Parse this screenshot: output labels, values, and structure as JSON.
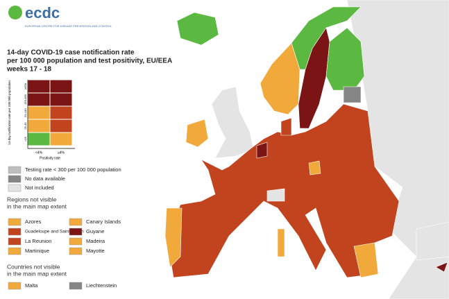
{
  "header": {
    "logo": "ecdc",
    "logo_subtitle": "EUROPEAN CENTRE FOR DISEASE PREVENTION AND CONTROL",
    "title": [
      "14-day COVID-19 case notification rate",
      "per 100 000 population and test positivity, EU/EEA",
      "weeks 17 - 18"
    ]
  },
  "matrix": {
    "y_label": "14-day notification rate per 100 000 population",
    "x_label": "Positivity rate",
    "columns": [
      "<4%",
      "≥4%"
    ],
    "rows": [
      {
        "label": "≥500",
        "colors": [
          "#7b1414",
          "#7b1414"
        ]
      },
      {
        "label": "150-499",
        "colors": [
          "#7b1414",
          "#7b1414"
        ]
      },
      {
        "label": "50-149",
        "colors": [
          "#f2a93b",
          "#c1441e"
        ]
      },
      {
        "label": "25-49",
        "colors": [
          "#f2a93b",
          "#c1441e"
        ]
      },
      {
        "label": "<25",
        "colors": [
          "#5bb942",
          "#f2a93b"
        ]
      }
    ]
  },
  "legend": {
    "items": [
      {
        "label": "Testing rate < 300 per 100 000 population",
        "color": "#bdbdbd"
      },
      {
        "label": "No data available",
        "color": "#858585"
      },
      {
        "label": "Not included",
        "color": "#e4e4e4"
      }
    ],
    "regions": {
      "title": [
        "Regions not visible",
        "in the main map extent"
      ],
      "items": [
        {
          "label": "Azores",
          "color": "#f2a93b"
        },
        {
          "label": "Canary Islands",
          "color": "#f2a93b"
        },
        {
          "label": "Guadeloupe and Saint Martin",
          "color": "#c1441e"
        },
        {
          "label": "Guyane",
          "color": "#7b1414"
        },
        {
          "label": "La Reunion",
          "color": "#c1441e"
        },
        {
          "label": "Madeira",
          "color": "#f2a93b"
        },
        {
          "label": "Martinique",
          "color": "#f2a93b"
        },
        {
          "label": "Mayotte",
          "color": "#f2a93b"
        }
      ]
    },
    "countries": {
      "title": [
        "Countries not visible",
        "in the main map extent"
      ],
      "items": [
        {
          "label": "Malta",
          "color": "#f2a93b"
        },
        {
          "label": "Liechtenstein",
          "color": "#858585"
        }
      ]
    }
  }
}
